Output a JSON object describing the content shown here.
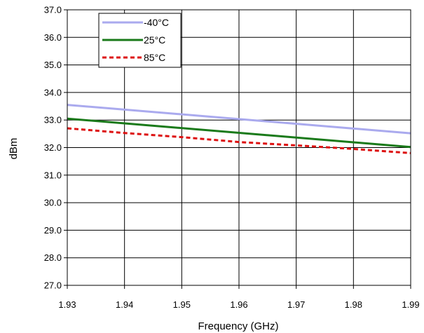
{
  "chart_data": {
    "type": "line",
    "title": "",
    "xlabel": "Frequency (GHz)",
    "ylabel": "dBm",
    "xlim": [
      1.93,
      1.99
    ],
    "ylim": [
      27.0,
      37.0
    ],
    "x_ticks": [
      "1.93",
      "1.94",
      "1.95",
      "1.96",
      "1.97",
      "1.98",
      "1.99"
    ],
    "y_ticks": [
      "27.0",
      "28.0",
      "29.0",
      "30.0",
      "31.0",
      "32.0",
      "33.0",
      "34.0",
      "35.0",
      "36.0",
      "37.0"
    ],
    "grid": true,
    "legend_position": "top-left",
    "series": [
      {
        "name": "-40°C",
        "color": "#aaaaee",
        "style": "solid",
        "x": [
          1.93,
          1.99
        ],
        "y": [
          33.55,
          32.52
        ]
      },
      {
        "name": "25°C",
        "color": "#1a7a1a",
        "style": "solid",
        "x": [
          1.93,
          1.99
        ],
        "y": [
          33.05,
          32.02
        ]
      },
      {
        "name": "85°C",
        "color": "#dd1111",
        "style": "dashed",
        "x": [
          1.93,
          1.94,
          1.95,
          1.96,
          1.97,
          1.98,
          1.99
        ],
        "y": [
          32.7,
          32.53,
          32.38,
          32.2,
          32.08,
          31.95,
          31.8
        ]
      }
    ]
  }
}
